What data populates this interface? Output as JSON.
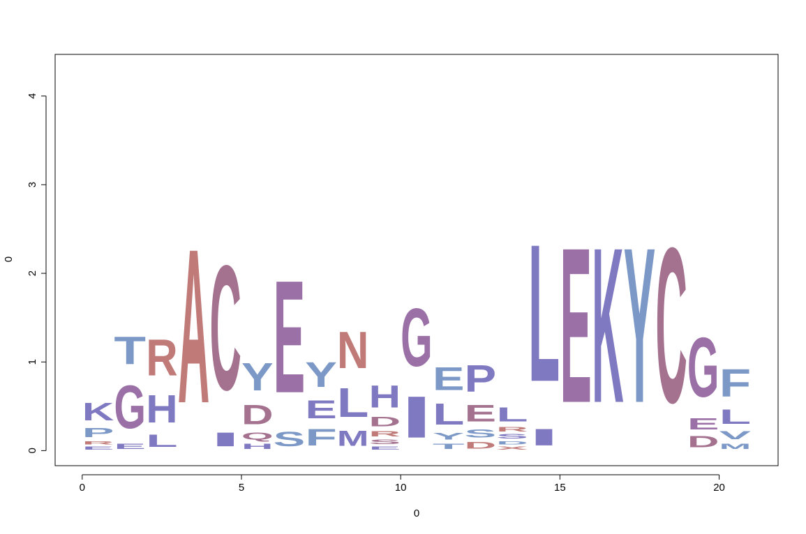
{
  "chart_data": {
    "type": "sequence-logo",
    "xlabel": "0",
    "ylabel": "0",
    "xlim": [
      -0.85,
      21.85
    ],
    "ylim": [
      -0.17,
      4.47
    ],
    "xticks": [
      0,
      5,
      10,
      15,
      20
    ],
    "yticks": [
      0,
      1,
      2,
      3,
      4
    ],
    "grid": false,
    "colors": {
      "blue": "#7b98c6",
      "purple": "#7f79c2",
      "mauve": "#9a70a6",
      "salmon": "#c07a78",
      "rose": "#a4728f"
    },
    "positions": [
      {
        "x": 0,
        "stack": [
          {
            "letter": "E",
            "height": 0.06,
            "color": "purple"
          },
          {
            "letter": "R",
            "height": 0.06,
            "color": "salmon"
          },
          {
            "letter": "P",
            "height": 0.16,
            "color": "blue"
          },
          {
            "letter": "K",
            "height": 0.32,
            "color": "purple"
          }
        ]
      },
      {
        "x": 1,
        "stack": [
          {
            "letter": "E",
            "height": 0.1,
            "color": "purple"
          },
          {
            "letter": "G",
            "height": 0.78,
            "color": "mauve"
          },
          {
            "letter": "T",
            "height": 0.5,
            "color": "blue"
          }
        ]
      },
      {
        "x": 2,
        "stack": [
          {
            "letter": "L",
            "height": 0.22,
            "color": "purple"
          },
          {
            "letter": "H",
            "height": 0.5,
            "color": "purple"
          },
          {
            "letter": "R",
            "height": 0.65,
            "color": "salmon"
          }
        ]
      },
      {
        "x": 3,
        "stack": [
          {
            "letter": "A",
            "height": 2.78,
            "color": "salmon"
          }
        ]
      },
      {
        "x": 4,
        "stack": [
          {
            "letter": "I",
            "height": 0.25,
            "color": "purple"
          },
          {
            "letter": "C",
            "height": 2.25,
            "color": "rose"
          }
        ]
      },
      {
        "x": 5,
        "stack": [
          {
            "letter": "H",
            "height": 0.1,
            "color": "purple"
          },
          {
            "letter": "Q",
            "height": 0.13,
            "color": "rose"
          },
          {
            "letter": "D",
            "height": 0.35,
            "color": "rose"
          },
          {
            "letter": "Y",
            "height": 0.5,
            "color": "blue"
          }
        ]
      },
      {
        "x": 6,
        "stack": [
          {
            "letter": "S",
            "height": 0.26,
            "color": "blue"
          },
          {
            "letter": "E",
            "height": 2.03,
            "color": "mauve"
          }
        ]
      },
      {
        "x": 7,
        "stack": [
          {
            "letter": "F",
            "height": 0.3,
            "color": "blue"
          },
          {
            "letter": "E",
            "height": 0.33,
            "color": "purple"
          },
          {
            "letter": "Y",
            "height": 0.45,
            "color": "blue"
          }
        ]
      },
      {
        "x": 8,
        "stack": [
          {
            "letter": "M",
            "height": 0.28,
            "color": "purple"
          },
          {
            "letter": "L",
            "height": 0.52,
            "color": "purple"
          },
          {
            "letter": "N",
            "height": 0.66,
            "color": "salmon"
          }
        ]
      },
      {
        "x": 9,
        "stack": [
          {
            "letter": "E",
            "height": 0.06,
            "color": "purple"
          },
          {
            "letter": "S",
            "height": 0.08,
            "color": "rose"
          },
          {
            "letter": "R",
            "height": 0.1,
            "color": "salmon"
          },
          {
            "letter": "D",
            "height": 0.17,
            "color": "rose"
          },
          {
            "letter": "H",
            "height": 0.4,
            "color": "purple"
          }
        ]
      },
      {
        "x": 10,
        "stack": [
          {
            "letter": "I",
            "height": 0.75,
            "color": "purple"
          },
          {
            "letter": "G",
            "height": 1.05,
            "color": "mauve"
          }
        ]
      },
      {
        "x": 11,
        "stack": [
          {
            "letter": "T",
            "height": 0.1,
            "color": "blue"
          },
          {
            "letter": "Y",
            "height": 0.12,
            "color": "blue"
          },
          {
            "letter": "L",
            "height": 0.38,
            "color": "purple"
          },
          {
            "letter": "E",
            "height": 0.42,
            "color": "blue"
          }
        ]
      },
      {
        "x": 12,
        "stack": [
          {
            "letter": "D",
            "height": 0.12,
            "color": "salmon"
          },
          {
            "letter": "S",
            "height": 0.15,
            "color": "blue"
          },
          {
            "letter": "E",
            "height": 0.3,
            "color": "rose"
          },
          {
            "letter": "P",
            "height": 0.48,
            "color": "purple"
          }
        ]
      },
      {
        "x": 13,
        "stack": [
          {
            "letter": "X",
            "height": 0.06,
            "color": "salmon"
          },
          {
            "letter": "D",
            "height": 0.06,
            "color": "blue"
          },
          {
            "letter": "S",
            "height": 0.08,
            "color": "purple"
          },
          {
            "letter": "R",
            "height": 0.08,
            "color": "salmon"
          },
          {
            "letter": "L",
            "height": 0.25,
            "color": "purple"
          }
        ]
      },
      {
        "x": 14,
        "stack": [
          {
            "letter": "I",
            "height": 0.3,
            "color": "purple"
          },
          {
            "letter": "L",
            "height": 2.48,
            "color": "purple"
          }
        ]
      },
      {
        "x": 15,
        "stack": [
          {
            "letter": "E",
            "height": 2.8,
            "color": "mauve"
          }
        ]
      },
      {
        "x": 16,
        "stack": [
          {
            "letter": "K",
            "height": 2.8,
            "color": "purple"
          }
        ]
      },
      {
        "x": 17,
        "stack": [
          {
            "letter": "Y",
            "height": 2.8,
            "color": "blue"
          }
        ]
      },
      {
        "x": 18,
        "stack": [
          {
            "letter": "C",
            "height": 2.8,
            "color": "rose"
          }
        ]
      },
      {
        "x": 19,
        "stack": [
          {
            "letter": "D",
            "height": 0.2,
            "color": "rose"
          },
          {
            "letter": "E",
            "height": 0.2,
            "color": "mauve"
          },
          {
            "letter": "G",
            "height": 1.07,
            "color": "mauve"
          }
        ]
      },
      {
        "x": 20,
        "stack": [
          {
            "letter": "M",
            "height": 0.1,
            "color": "blue"
          },
          {
            "letter": "V",
            "height": 0.15,
            "color": "blue"
          },
          {
            "letter": "L",
            "height": 0.26,
            "color": "purple"
          },
          {
            "letter": "F",
            "height": 0.5,
            "color": "blue"
          }
        ]
      }
    ]
  }
}
